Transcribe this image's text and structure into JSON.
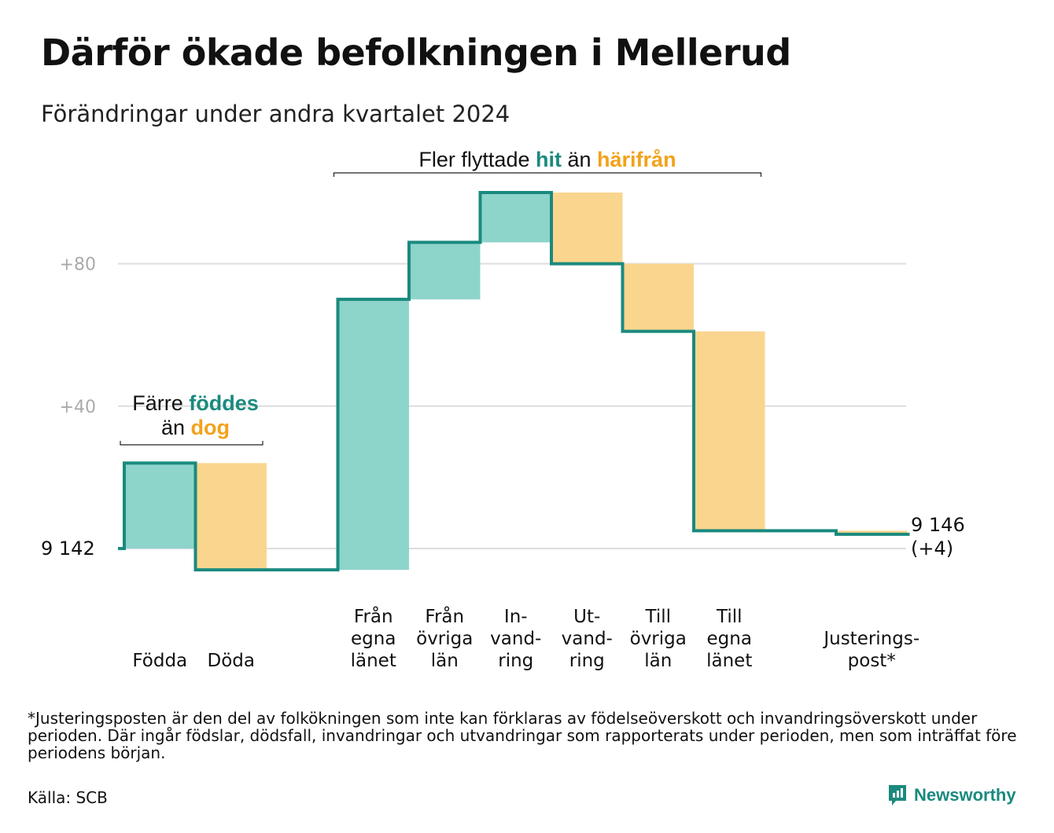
{
  "title": "Därför ökade befolkningen i Mellerud",
  "subtitle": "Förändringar under andra kvartalet 2024",
  "footnote": "*Justeringsposten är den del av folkökningen som inte kan förklaras av födelseöverskott och invandringsöverskott under perioden. Där ingår födslar, dödsfall, invandringar och utvandringar som rapporterats under perioden, men som inträffat före periodens början.",
  "source": "Källa: SCB",
  "brand": "Newsworthy",
  "colors": {
    "line": "#1a8a7e",
    "increase": "#8dd4cb",
    "decrease": "#fad58e",
    "hit": "#1a8a7e",
    "harifran": "#f2a21b",
    "grid": "#dddddd",
    "ticklabel": "#aaaaaa"
  },
  "chart_data": {
    "type": "waterfall",
    "start_label": "9 142",
    "end_label": "9 146",
    "end_change_label": "(+4)",
    "start_value": 9142,
    "end_value": 9146,
    "y_ticks": [
      {
        "value": 80,
        "label": "+80"
      },
      {
        "value": 40,
        "label": "+40"
      }
    ],
    "ylim": [
      -10,
      102
    ],
    "categories": [
      {
        "key": "fodda",
        "label_lines": [
          "Födda"
        ],
        "change": 24,
        "start": 0,
        "end": 24,
        "kind": "increase"
      },
      {
        "key": "doda",
        "label_lines": [
          "Döda"
        ],
        "change": -30,
        "start": 24,
        "end": -6,
        "kind": "decrease"
      },
      {
        "key": "gap",
        "label_lines": [],
        "change": 0,
        "start": -6,
        "end": -6,
        "kind": "none"
      },
      {
        "key": "fran_egna_lanet",
        "label_lines": [
          "Från",
          "egna",
          "länet"
        ],
        "change": 76,
        "start": -6,
        "end": 70,
        "kind": "increase"
      },
      {
        "key": "fran_ovriga_lan",
        "label_lines": [
          "Från",
          "övriga",
          "län"
        ],
        "change": 16,
        "start": 70,
        "end": 86,
        "kind": "increase"
      },
      {
        "key": "invandring",
        "label_lines": [
          "In-",
          "vand-",
          "ring"
        ],
        "change": 14,
        "start": 86,
        "end": 100,
        "kind": "increase"
      },
      {
        "key": "utvandring",
        "label_lines": [
          "Ut-",
          "vand-",
          "ring"
        ],
        "change": -20,
        "start": 100,
        "end": 80,
        "kind": "decrease"
      },
      {
        "key": "till_ovriga_lan",
        "label_lines": [
          "Till",
          "övriga",
          "län"
        ],
        "change": -19,
        "start": 80,
        "end": 61,
        "kind": "decrease"
      },
      {
        "key": "till_egna_lanet",
        "label_lines": [
          "Till",
          "egna",
          "länet"
        ],
        "change": -56,
        "start": 61,
        "end": 5,
        "kind": "decrease"
      },
      {
        "key": "gap2",
        "label_lines": [],
        "change": 0,
        "start": 5,
        "end": 5,
        "kind": "none"
      },
      {
        "key": "justeringspost",
        "label_lines": [
          "Justerings-",
          "post*"
        ],
        "change": -1,
        "start": 5,
        "end": 4,
        "kind": "decrease"
      }
    ],
    "annotations": {
      "births": {
        "line1_pre": "Färre ",
        "line1_hl": "föddes",
        "line2_pre": "än ",
        "line2_hl": "dog"
      },
      "moves": {
        "pre": "Fler flyttade ",
        "hl1": "hit",
        "mid": " än ",
        "hl2": "härifrån"
      }
    }
  }
}
